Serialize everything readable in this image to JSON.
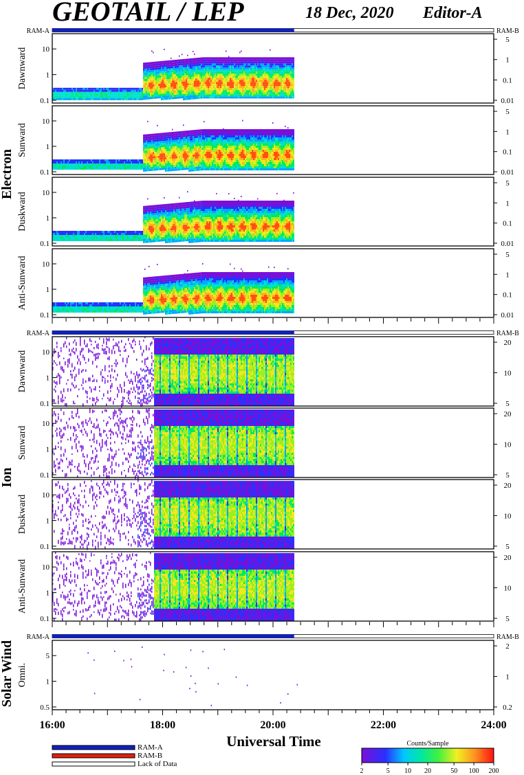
{
  "header": {
    "title": "GEOTAIL / LEP",
    "date": "18 Dec, 2020",
    "editor": "Editor-A"
  },
  "labels": {
    "ram_a": "RAM-A",
    "ram_b": "RAM-B"
  },
  "colors": {
    "ram_a": "#1020c0",
    "ram_b": "#e02010",
    "lack": "#ffffff"
  },
  "chart_data": {
    "type": "heatmap",
    "x_axis": {
      "label": "Universal Time",
      "range": [
        "16:00",
        "24:00"
      ],
      "ticks": [
        "16:00",
        "18:00",
        "20:00",
        "22:00",
        "24:00"
      ]
    },
    "data_coverage": {
      "start": "16:00",
      "end": "20:23",
      "mode": "RAM-A"
    },
    "groups": [
      {
        "name": "Electron",
        "panels": [
          {
            "label": "Dawnward",
            "left_ticks": [
              "10",
              "1",
              "0.1"
            ],
            "right_ticks": [
              "5",
              "1",
              "0.1",
              "0.01"
            ]
          },
          {
            "label": "Sunward",
            "left_ticks": [
              "10",
              "1",
              "0.1"
            ],
            "right_ticks": [
              "5",
              "1",
              "0.1",
              "0.01"
            ]
          },
          {
            "label": "Duskward",
            "left_ticks": [
              "10",
              "1",
              "0.1"
            ],
            "right_ticks": [
              "5",
              "1",
              "0.1",
              "0.01"
            ]
          },
          {
            "label": "Anti-Sunward",
            "left_ticks": [
              "10",
              "1",
              "0.1"
            ],
            "right_ticks": [
              "5",
              "1",
              "0.1",
              "0.01"
            ]
          }
        ]
      },
      {
        "name": "Ion",
        "panels": [
          {
            "label": "Dawnward",
            "left_ticks": [
              "10",
              "1",
              "0.1"
            ],
            "right_ticks": [
              "20",
              "10",
              "5"
            ]
          },
          {
            "label": "Sunward",
            "left_ticks": [
              "10",
              "1",
              "0.1"
            ],
            "right_ticks": [
              "20",
              "10",
              "5"
            ]
          },
          {
            "label": "Duskward",
            "left_ticks": [
              "10",
              "1",
              "0.1"
            ],
            "right_ticks": [
              "20",
              "10",
              "5"
            ]
          },
          {
            "label": "Anti-Sunward",
            "left_ticks": [
              "10",
              "1",
              "0.1"
            ],
            "right_ticks": [
              "20",
              "10",
              "5"
            ]
          }
        ]
      },
      {
        "name": "Solar Wind",
        "panels": [
          {
            "label": "Omni.",
            "left_ticks": [
              "5",
              "1",
              "0.5"
            ],
            "right_ticks": [
              "2",
              "1",
              "0.2"
            ]
          }
        ]
      }
    ],
    "colorbar": {
      "title": "Counts/Sample",
      "ticks": [
        "2",
        "5",
        "10",
        "20",
        "50",
        "100",
        "200"
      ],
      "range": [
        2,
        200
      ],
      "scale": "log"
    },
    "legend": [
      {
        "label": "RAM-A",
        "color": "#1020c0"
      },
      {
        "label": "RAM-B",
        "color": "#e02010"
      },
      {
        "label": "Lack of Data",
        "color": "#ffffff"
      }
    ]
  }
}
